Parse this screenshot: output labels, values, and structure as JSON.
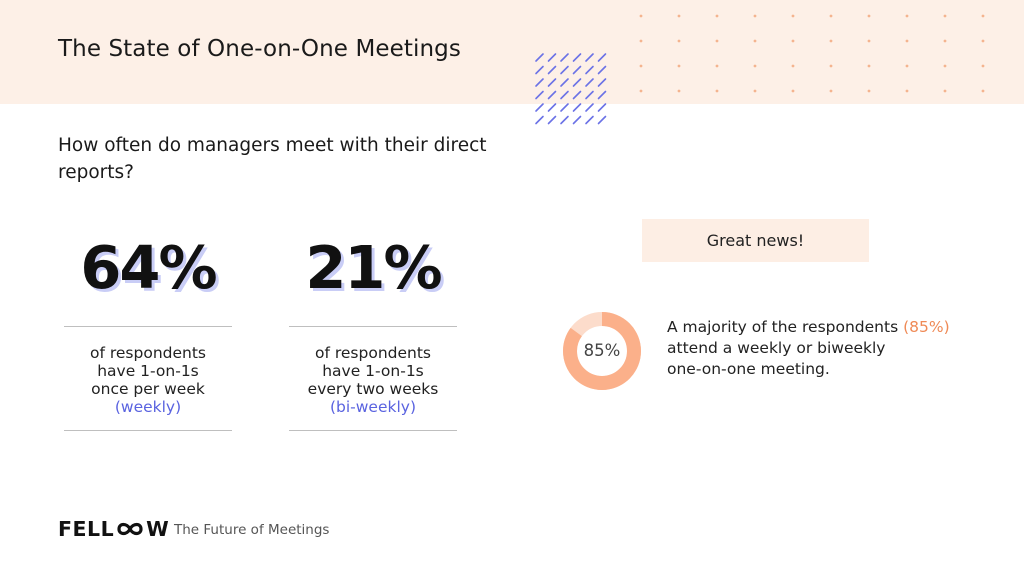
{
  "header": {
    "title": "The State of One-on-One Meetings"
  },
  "question": "How often do managers meet with their direct reports?",
  "stats": [
    {
      "value": "64%",
      "lines": [
        "of respondents",
        "have 1-on-1s",
        "once per week"
      ],
      "highlight": "(weekly)"
    },
    {
      "value": "21%",
      "lines": [
        "of respondents",
        "have 1-on-1s",
        "every two weeks"
      ],
      "highlight": "(bi-weekly)"
    }
  ],
  "callout": {
    "badge": "Great news!",
    "donut_label": "85%",
    "donut_fraction": 0.85,
    "line1_prefix": "A majority of the respondents ",
    "line1_highlight": "(85%)",
    "line2": "attend a weekly or biweekly",
    "line3": "one-on-one meeting."
  },
  "footer": {
    "logo_left": "FELL",
    "logo_right": "W",
    "logo_icon": "infinity-icon",
    "tagline": "The Future of Meetings"
  },
  "colors": {
    "header_band": "#fdf0e7",
    "accent_blue": "#5a63e0",
    "accent_orange": "#ef8a56",
    "donut_main": "#fbb08a",
    "donut_rest": "#fcdccb"
  }
}
